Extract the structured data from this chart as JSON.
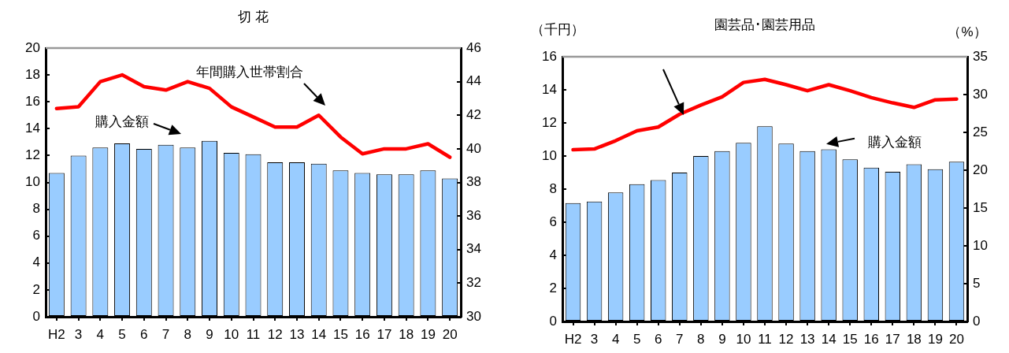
{
  "chart_data": [
    {
      "type": "bar",
      "title": "切 花",
      "categories": [
        "H2",
        "3",
        "4",
        "5",
        "6",
        "7",
        "8",
        "9",
        "10",
        "11",
        "12",
        "13",
        "14",
        "15",
        "16",
        "17",
        "18",
        "19",
        "20"
      ],
      "series": [
        {
          "name": "購入金額",
          "color": "#99ccff",
          "values": [
            10.7,
            12.0,
            12.6,
            12.9,
            12.5,
            12.8,
            12.6,
            13.1,
            12.2,
            12.1,
            11.5,
            11.5,
            11.4,
            10.9,
            10.7,
            10.6,
            10.6,
            10.9,
            10.3
          ]
        },
        {
          "name": "年間購入世帯割合",
          "type": "line",
          "axis": "y2",
          "color": "#ff0000",
          "values": [
            42.4,
            42.5,
            44.0,
            44.4,
            43.7,
            43.5,
            44.0,
            43.6,
            42.5,
            41.9,
            41.3,
            41.3,
            42.0,
            40.7,
            39.7,
            40.0,
            40.0,
            40.3,
            39.5
          ]
        }
      ],
      "ylim": [
        0,
        20
      ],
      "yticks": [
        0,
        2,
        4,
        6,
        8,
        10,
        12,
        14,
        16,
        18,
        20
      ],
      "y2lim": [
        30,
        46
      ],
      "y2ticks": [
        30,
        32,
        34,
        36,
        38,
        40,
        42,
        44,
        46
      ],
      "marker": "none"
    },
    {
      "type": "bar",
      "title": "園芸品･園芸用品",
      "ylabel": "（千円）",
      "y2label": "（%）",
      "categories": [
        "H2",
        "3",
        "4",
        "5",
        "6",
        "7",
        "8",
        "9",
        "10",
        "11",
        "12",
        "13",
        "14",
        "15",
        "16",
        "17",
        "18",
        "19",
        "20"
      ],
      "series": [
        {
          "name": "購入金額",
          "color": "#99ccff",
          "values": [
            7.15,
            7.25,
            7.8,
            8.3,
            8.55,
            9.0,
            10.0,
            10.3,
            10.8,
            11.8,
            10.75,
            10.3,
            10.4,
            9.8,
            9.3,
            9.05,
            9.5,
            9.2,
            9.65
          ]
        },
        {
          "type": "line",
          "axis": "y2",
          "color": "#ff0000",
          "values": [
            22.7,
            22.8,
            23.9,
            25.2,
            25.7,
            27.4,
            28.6,
            29.7,
            31.6,
            32.0,
            31.3,
            30.5,
            31.3,
            30.5,
            29.6,
            28.9,
            28.3,
            29.3,
            29.4
          ]
        }
      ],
      "ylim": [
        0,
        16
      ],
      "yticks": [
        0,
        2,
        4,
        6,
        8,
        10,
        12,
        14,
        16
      ],
      "y2lim": [
        0,
        35
      ],
      "y2ticks": [
        0,
        5,
        10,
        15,
        20,
        25,
        30,
        35
      ],
      "marker": "none"
    }
  ]
}
